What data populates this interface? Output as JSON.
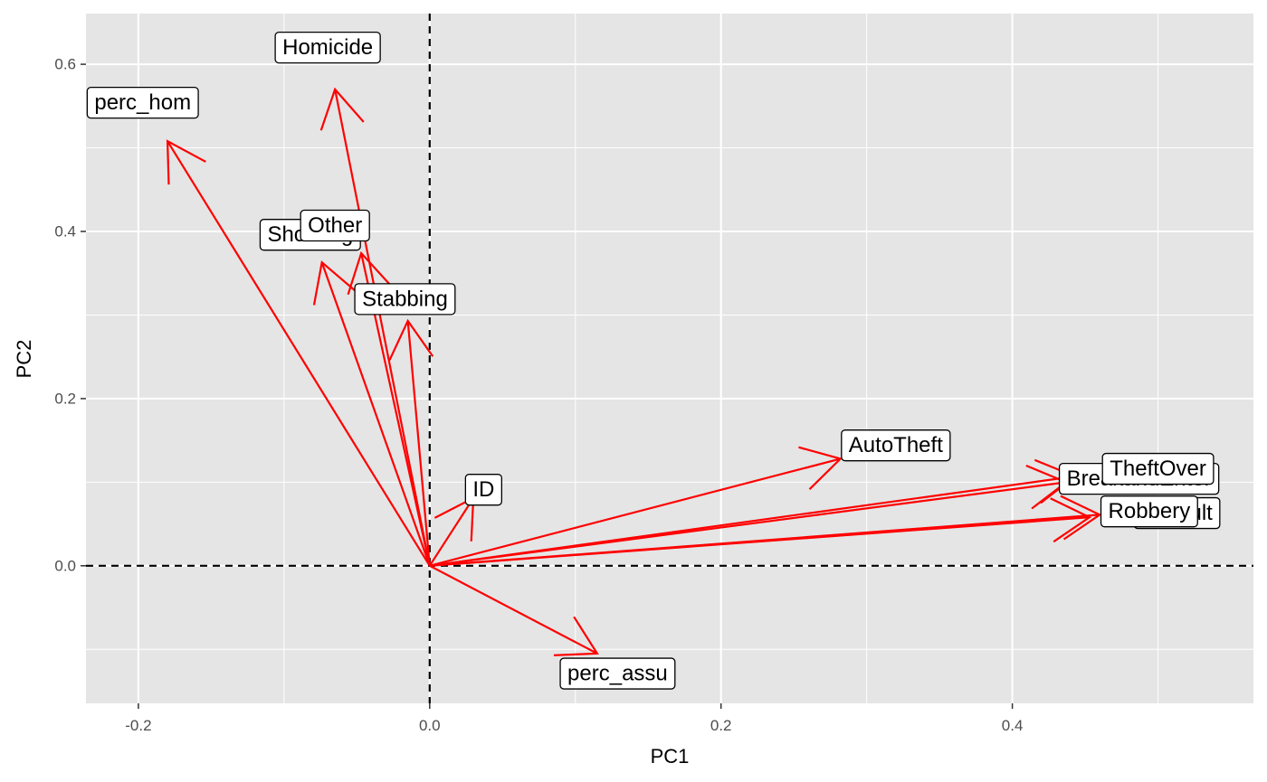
{
  "chart_data": {
    "type": "biplot",
    "xlabel": "PC1",
    "ylabel": "PC2",
    "xlim": [
      -0.24,
      0.565
    ],
    "ylim": [
      -0.165,
      0.66
    ],
    "xticks": [
      -0.2,
      0.0,
      0.2,
      0.4
    ],
    "xtick_labels": [
      "-0.2",
      "0.0",
      "0.2",
      "0.4"
    ],
    "yticks": [
      0.0,
      0.2,
      0.4,
      0.6
    ],
    "ytick_labels": [
      "0.0",
      "0.2",
      "0.4",
      "0.6"
    ],
    "grid": true,
    "reference_lines": {
      "x": 0,
      "y": 0,
      "style": "dashed"
    },
    "colors": {
      "panel": "#e5e5e5",
      "grid": "#ffffff",
      "vector": "#ff0000"
    },
    "vectors": [
      {
        "name": "Homicide",
        "x": -0.065,
        "y": 0.57,
        "label_x": -0.07,
        "label_y": 0.62
      },
      {
        "name": "perc_hom",
        "x": -0.18,
        "y": 0.508,
        "label_x": -0.197,
        "label_y": 0.554
      },
      {
        "name": "Shooting",
        "x": -0.074,
        "y": 0.363,
        "label_x": -0.082,
        "label_y": 0.396
      },
      {
        "name": "Other",
        "x": -0.047,
        "y": 0.374,
        "label_x": -0.065,
        "label_y": 0.407
      },
      {
        "name": "Stabbing",
        "x": -0.015,
        "y": 0.293,
        "label_x": -0.017,
        "label_y": 0.319
      },
      {
        "name": "ID",
        "x": 0.03,
        "y": 0.081,
        "label_x": 0.037,
        "label_y": 0.091
      },
      {
        "name": "AutoTheft",
        "x": 0.282,
        "y": 0.128,
        "label_x": 0.32,
        "label_y": 0.144
      },
      {
        "name": "BreakandEnter",
        "x": 0.437,
        "y": 0.1,
        "label_x": 0.487,
        "label_y": 0.104
      },
      {
        "name": "TheftOver",
        "x": 0.443,
        "y": 0.107,
        "label_x": 0.5,
        "label_y": 0.116
      },
      {
        "name": "Assault",
        "x": 0.46,
        "y": 0.061,
        "label_x": 0.513,
        "label_y": 0.063
      },
      {
        "name": "Robbery",
        "x": 0.453,
        "y": 0.058,
        "label_x": 0.494,
        "label_y": 0.065
      },
      {
        "name": "perc_assu",
        "x": 0.115,
        "y": -0.105,
        "label_x": 0.129,
        "label_y": -0.129
      }
    ]
  }
}
